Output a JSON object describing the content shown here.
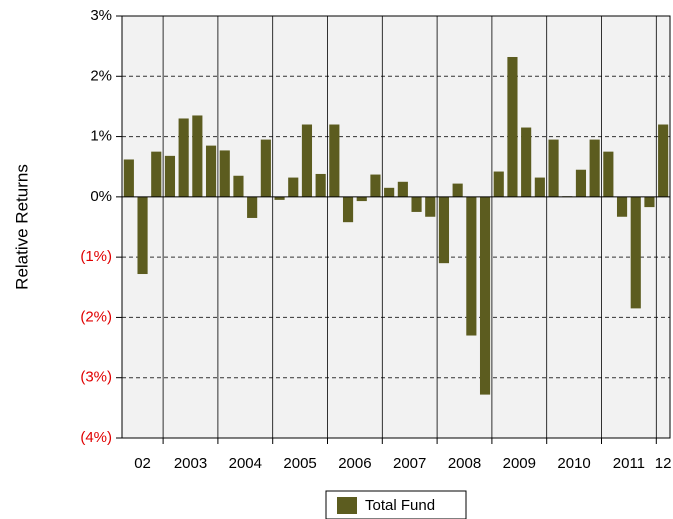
{
  "chart_data": {
    "type": "bar",
    "y_label": "Relative Returns",
    "ylim": [
      -4,
      3
    ],
    "yticks": [
      {
        "value": 3,
        "label": "3%"
      },
      {
        "value": 2,
        "label": "2%"
      },
      {
        "value": 1,
        "label": "1%"
      },
      {
        "value": 0,
        "label": "0%"
      },
      {
        "value": -1,
        "label": "(1%)"
      },
      {
        "value": -2,
        "label": "(2%)"
      },
      {
        "value": -3,
        "label": "(3%)"
      },
      {
        "value": -4,
        "label": "(4%)"
      }
    ],
    "grid": true,
    "series": [
      {
        "name": "Total Fund",
        "color": "#5c5c1f",
        "groups": [
          {
            "label": "02",
            "values": [
              0.62,
              -1.28,
              0.75
            ]
          },
          {
            "label": "2003",
            "values": [
              0.68,
              1.3,
              1.35,
              0.85
            ]
          },
          {
            "label": "2004",
            "values": [
              0.77,
              0.35,
              -0.35,
              0.95
            ]
          },
          {
            "label": "2005",
            "values": [
              -0.05,
              0.32,
              1.2,
              0.38
            ]
          },
          {
            "label": "2006",
            "values": [
              1.2,
              -0.42,
              -0.07,
              0.37
            ]
          },
          {
            "label": "2007",
            "values": [
              0.15,
              0.25,
              -0.25,
              -0.33
            ]
          },
          {
            "label": "2008",
            "values": [
              -1.1,
              0.22,
              -2.3,
              -3.28
            ]
          },
          {
            "label": "2009",
            "values": [
              0.42,
              2.32,
              1.15,
              0.32
            ]
          },
          {
            "label": "2010",
            "values": [
              0.95,
              0.01,
              0.45,
              0.95
            ]
          },
          {
            "label": "2011",
            "values": [
              0.75,
              -0.33,
              -1.85,
              -0.17
            ]
          },
          {
            "label": "12",
            "values": [
              1.2
            ]
          }
        ]
      }
    ]
  }
}
